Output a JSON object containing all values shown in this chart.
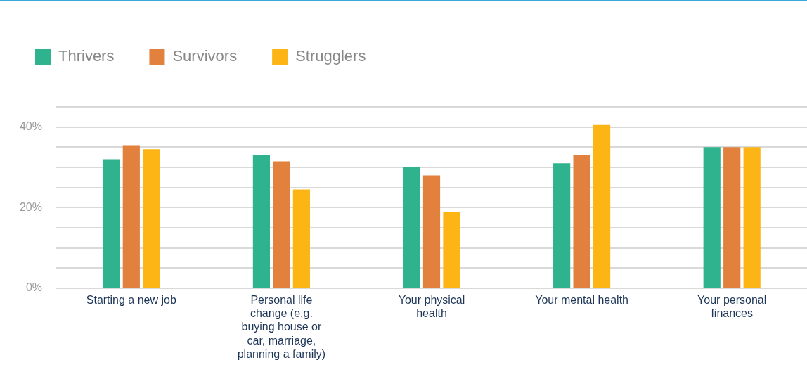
{
  "chart_data": {
    "type": "bar",
    "categories": [
      "Starting a new job",
      "Personal life change (e.g. buying house or car, marriage, planning a family)",
      "Your physical health",
      "Your mental health",
      "Your personal finances"
    ],
    "series": [
      {
        "name": "Thrivers",
        "color": "#2fb28e",
        "values": [
          32,
          33,
          30,
          31,
          35
        ]
      },
      {
        "name": "Survivors",
        "color": "#e2803d",
        "values": [
          35.5,
          31.5,
          28,
          33,
          35
        ]
      },
      {
        "name": "Strugglers",
        "color": "#fdb515",
        "values": [
          34.5,
          24.5,
          19,
          40.5,
          35
        ]
      }
    ],
    "ylim": [
      0,
      45
    ],
    "yticks": [
      {
        "value": 0,
        "label": "0%"
      },
      {
        "value": 5,
        "label": null
      },
      {
        "value": 10,
        "label": null
      },
      {
        "value": 15,
        "label": null
      },
      {
        "value": 20,
        "label": "20%"
      },
      {
        "value": 25,
        "label": null
      },
      {
        "value": 30,
        "label": null
      },
      {
        "value": 35,
        "label": null
      },
      {
        "value": 40,
        "label": "40%"
      },
      {
        "value": 45,
        "label": null
      }
    ],
    "grid": "y",
    "legend": "top left"
  }
}
